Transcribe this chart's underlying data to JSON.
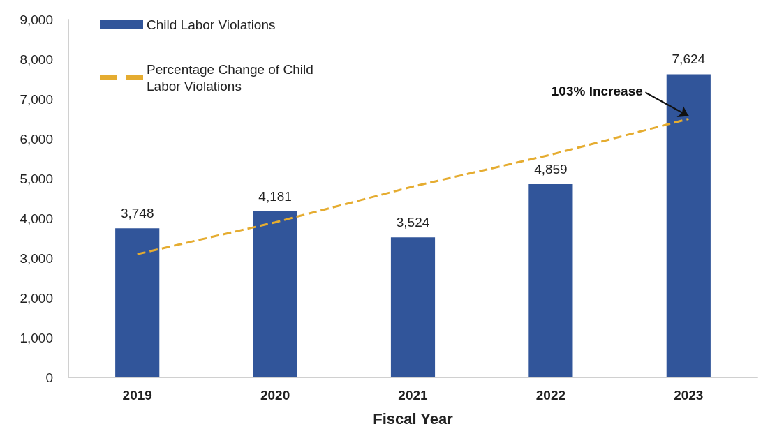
{
  "chart_data": {
    "type": "bar",
    "xlabel": "Fiscal Year",
    "categories": [
      "2019",
      "2020",
      "2021",
      "2022",
      "2023"
    ],
    "series": [
      {
        "name": "Child Labor Violations",
        "color": "#31559a",
        "values": [
          3748,
          4181,
          3524,
          4859,
          7624
        ],
        "value_labels": [
          "3,748",
          "4,181",
          "3,524",
          "4,859",
          "7,624"
        ]
      },
      {
        "name": "Percentage Change of Child Labor Violations",
        "type": "line",
        "color": "#e5ac30",
        "line_style": "dashed",
        "marker": "none",
        "values": [
          3100,
          3900,
          4800,
          5600,
          6500
        ]
      }
    ],
    "ylim": [
      0,
      9000
    ],
    "yticks": [
      {
        "value": 0,
        "label": "0"
      },
      {
        "value": 1000,
        "label": "1,000"
      },
      {
        "value": 2000,
        "label": "2,000"
      },
      {
        "value": 3000,
        "label": "3,000"
      },
      {
        "value": 4000,
        "label": "4,000"
      },
      {
        "value": 5000,
        "label": "5,000"
      },
      {
        "value": 6000,
        "label": "6,000"
      },
      {
        "value": 7000,
        "label": "7,000"
      },
      {
        "value": 8000,
        "label": "8,000"
      },
      {
        "value": 9000,
        "label": "9,000"
      }
    ],
    "grid": false,
    "legend": "top left",
    "annotations": [
      {
        "text": "103% Increase",
        "x": "2023",
        "y": 6500
      }
    ]
  }
}
